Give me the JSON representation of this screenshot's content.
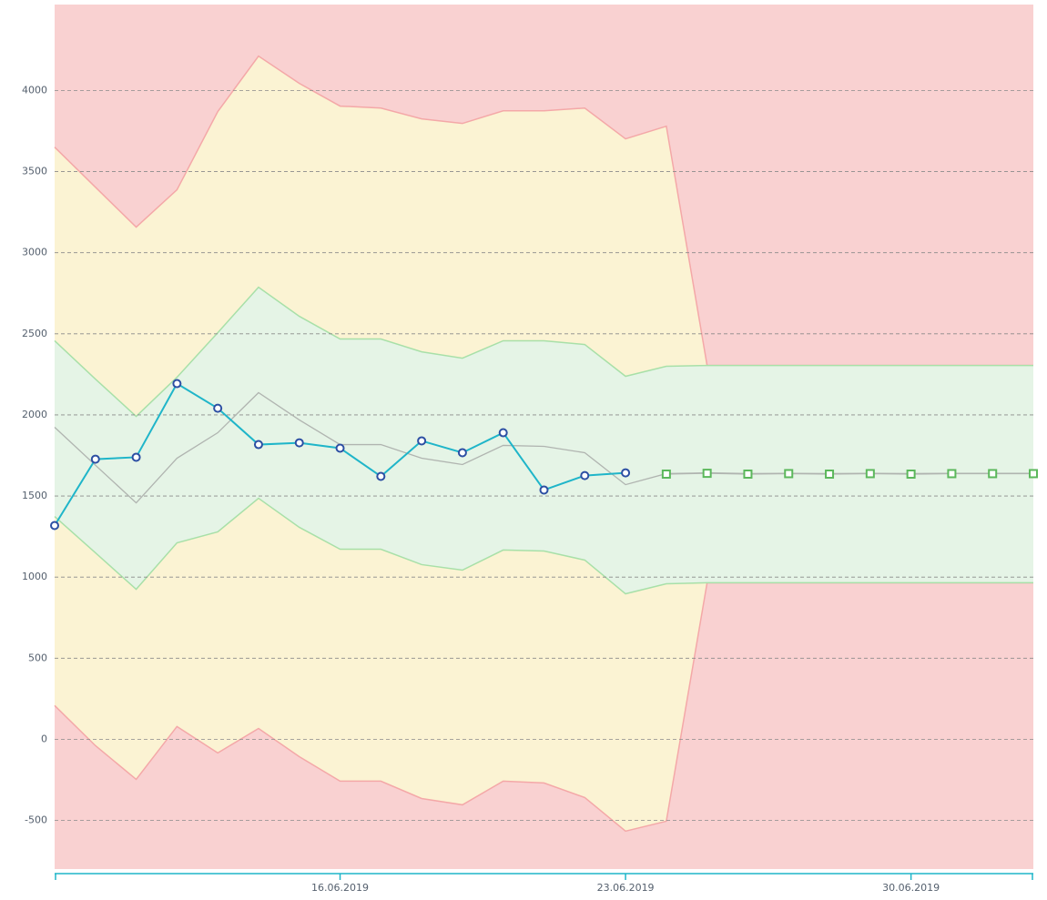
{
  "chart_data": {
    "type": "line",
    "x": [
      "2019-06-09",
      "2019-06-10",
      "2019-06-11",
      "2019-06-12",
      "2019-06-13",
      "2019-06-14",
      "2019-06-15",
      "2019-06-16",
      "2019-06-17",
      "2019-06-18",
      "2019-06-19",
      "2019-06-20",
      "2019-06-21",
      "2019-06-22",
      "2019-06-23",
      "2019-06-24",
      "2019-06-25",
      "2019-06-26",
      "2019-06-27",
      "2019-06-28",
      "2019-06-29",
      "2019-06-30",
      "2019-07-01",
      "2019-07-02",
      "2019-07-03"
    ],
    "xlim": [
      "2019-06-09",
      "2019-07-03"
    ],
    "xticks": [
      {
        "value": "2019-06-16",
        "label": "16.06.2019"
      },
      {
        "value": "2019-06-23",
        "label": "23.06.2019"
      },
      {
        "value": "2019-06-30",
        "label": "30.06.2019"
      }
    ],
    "ylim": [
      -800,
      4530
    ],
    "yticks": [
      -500,
      0,
      500,
      1000,
      1500,
      2000,
      2500,
      3000,
      3500,
      4000
    ],
    "grid": true,
    "background_color": "#f9d1d1",
    "bands": [
      {
        "color": "#fbf3d3",
        "line_color": "#f4a8a8",
        "upper": [
          3651,
          3404,
          3158,
          3388,
          3870,
          4212,
          4044,
          3904,
          3892,
          3825,
          3797,
          3875,
          3875,
          3892,
          3702,
          3780,
          2305,
          2305,
          2305,
          2305,
          2305,
          2305,
          2305,
          2305,
          2305
        ],
        "lower": [
          208,
          -39,
          -247,
          79,
          -84,
          67,
          -107,
          -258,
          -258,
          -365,
          -404,
          -258,
          -269,
          -359,
          -566,
          -505,
          965,
          965,
          965,
          965,
          965,
          965,
          965,
          965,
          965
        ]
      },
      {
        "color": "#e5f4e6",
        "line_color": "#a8e0a8",
        "upper": [
          2457,
          2221,
          1991,
          2232,
          2507,
          2787,
          2608,
          2468,
          2468,
          2389,
          2350,
          2457,
          2457,
          2434,
          2238,
          2300,
          2305,
          2305,
          2305,
          2305,
          2305,
          2305,
          2305,
          2305,
          2305
        ],
        "lower": [
          1374,
          1150,
          925,
          1211,
          1279,
          1486,
          1307,
          1172,
          1172,
          1077,
          1043,
          1167,
          1161,
          1105,
          897,
          959,
          965,
          965,
          965,
          965,
          965,
          965,
          965,
          965,
          965
        ]
      }
    ],
    "series": [
      {
        "color": "#b0b4b0",
        "marker": "none",
        "values": [
          1924,
          1690,
          1458,
          1733,
          1890,
          2137,
          1969,
          1817,
          1817,
          1733,
          1694,
          1812,
          1806,
          1767,
          1570,
          1638,
          1643,
          1638,
          1640,
          1638,
          1640,
          1638,
          1640,
          1640,
          1640
        ]
      },
      {
        "color": "#1fb5c9",
        "marker": "circle",
        "marker_color": "#2d4fa3",
        "values": [
          1318,
          1727,
          1739,
          2193,
          2041,
          1817,
          1828,
          1795,
          1621,
          1840,
          1767,
          1890,
          1537,
          1626,
          1643,
          null,
          null,
          null,
          null,
          null,
          null,
          null,
          null,
          null,
          null
        ]
      },
      {
        "color": "#b0b4b0",
        "marker": "square",
        "marker_color": "#5cb85c",
        "values": [
          null,
          null,
          null,
          null,
          null,
          null,
          null,
          null,
          null,
          null,
          null,
          null,
          null,
          null,
          null,
          1635,
          1640,
          1635,
          1638,
          1635,
          1638,
          1635,
          1638,
          1638,
          1638
        ]
      }
    ]
  }
}
